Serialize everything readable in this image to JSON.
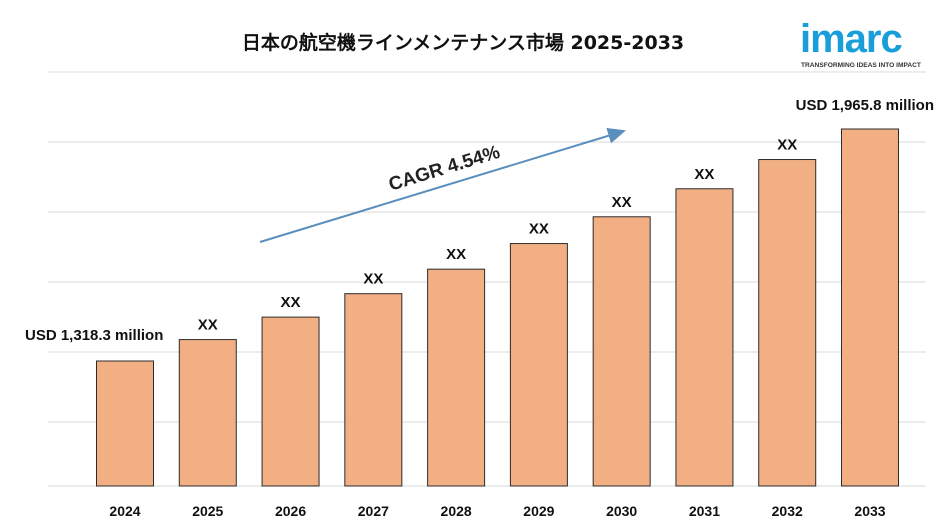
{
  "title": "日本の航空機ラインメンテナンス市場 2025-2033",
  "logo": {
    "text": "imarc",
    "tagline": "TRANSFORMING IDEAS INTO IMPACT",
    "color": "#1a9ed9"
  },
  "chart_data": {
    "type": "bar",
    "title": "日本の航空機ラインメンテナンス市場 2025-2033",
    "categories": [
      "2024",
      "2025",
      "2026",
      "2027",
      "2028",
      "2029",
      "2030",
      "2031",
      "2032",
      "2033"
    ],
    "series": [
      {
        "values": [
          1318.3,
          1378.1,
          1440.8,
          1506.2,
          1574.6,
          1646.1,
          1720.8,
          1799.0,
          1880.6,
          1965.8
        ]
      }
    ],
    "data_labels": [
      "USD 1,318.3 million",
      "XX",
      "XX",
      "XX",
      "XX",
      "XX",
      "XX",
      "XX",
      "XX",
      "USD 1,965.8 million"
    ],
    "annotation": "CAGR 4.54%",
    "grid": true,
    "legend": "none",
    "bar_color": "#f2af84",
    "bar_edge_color": "#2b2b2b",
    "grid_color": "#d9d9d9",
    "arrow_color": "#5a8fbd"
  }
}
